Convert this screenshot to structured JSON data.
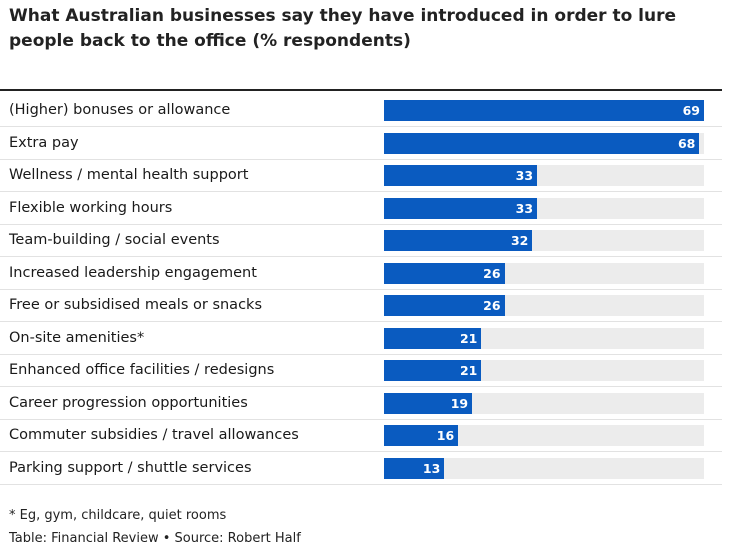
{
  "chart_data": {
    "type": "bar",
    "orientation": "horizontal",
    "title": "What Australian businesses say they have introduced in order to lure people back to the office (% respondents)",
    "categories": [
      "(Higher) bonuses or allowance",
      "Extra pay",
      "Wellness / mental health support",
      "Flexible working hours",
      "Team-building / social events",
      "Increased leadership engagement",
      "Free or subsidised meals or snacks",
      "On-site amenities*",
      "Enhanced office facilities / redesigns",
      "Career progression opportunities",
      "Commuter subsidies / travel allowances",
      "Parking support / shuttle services"
    ],
    "values": [
      69,
      68,
      33,
      33,
      32,
      26,
      26,
      21,
      21,
      19,
      16,
      13
    ],
    "xlim": [
      0,
      69
    ],
    "colors": {
      "bar": "#0a5bc0",
      "track": "#ececec",
      "value_text": "#ffffff"
    }
  },
  "footnote": "* Eg, gym, childcare, quiet rooms",
  "credit": "Table: Financial Review • Source: Robert Half"
}
